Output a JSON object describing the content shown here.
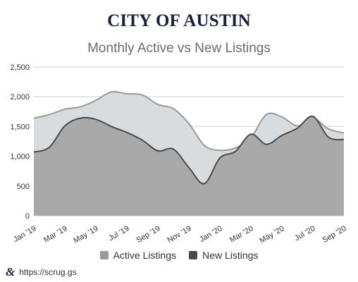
{
  "header": {
    "title": "CITY OF AUSTIN"
  },
  "footer": {
    "logo_icon": "ampersand-logo-icon",
    "link": "https://scrug.gs"
  },
  "colors": {
    "active": "#d9dcdf",
    "active_line": "#9a9a9a",
    "new": "#a9a9a9",
    "new_line": "#4a4a4a",
    "grid": "#d0d0d0"
  },
  "chart_data": {
    "type": "area",
    "title": "Monthly Active vs New Listings",
    "xlabel": "",
    "ylabel": "",
    "ylim": [
      0,
      2500
    ],
    "yticks": [
      0,
      500,
      1000,
      1500,
      2000,
      2500
    ],
    "ytick_labels": [
      "0",
      "500",
      "1,000",
      "1,500",
      "2,000",
      "2,500"
    ],
    "grid": true,
    "legend_position": "bottom",
    "x": [
      "Jan '19",
      "Feb '19",
      "Mar '19",
      "Apr '19",
      "May '19",
      "Jun '19",
      "Jul '19",
      "Aug '19",
      "Sep '19",
      "Oct '19",
      "Nov '19",
      "Dec '19",
      "Jan '20",
      "Feb '20",
      "Mar '20",
      "Apr '20",
      "May '20",
      "Jun '20",
      "Jul '20",
      "Aug '20",
      "Sep '20"
    ],
    "xtick_labels": [
      "Jan '19",
      "Mar '19",
      "May '19",
      "Jul '19",
      "Sep '19",
      "Nov '19",
      "Jan '20",
      "Mar '20",
      "May '20",
      "Jul '20",
      "Sep '20"
    ],
    "series": [
      {
        "name": "Active Listings",
        "values": [
          1640,
          1700,
          1790,
          1830,
          1940,
          2080,
          2050,
          2030,
          1870,
          1800,
          1550,
          1180,
          1100,
          1140,
          1310,
          1700,
          1660,
          1510,
          1640,
          1460,
          1390
        ]
      },
      {
        "name": "New Listings",
        "values": [
          1070,
          1150,
          1510,
          1640,
          1620,
          1500,
          1400,
          1270,
          1090,
          1120,
          810,
          540,
          970,
          1080,
          1370,
          1200,
          1350,
          1470,
          1670,
          1320,
          1280
        ]
      }
    ]
  }
}
